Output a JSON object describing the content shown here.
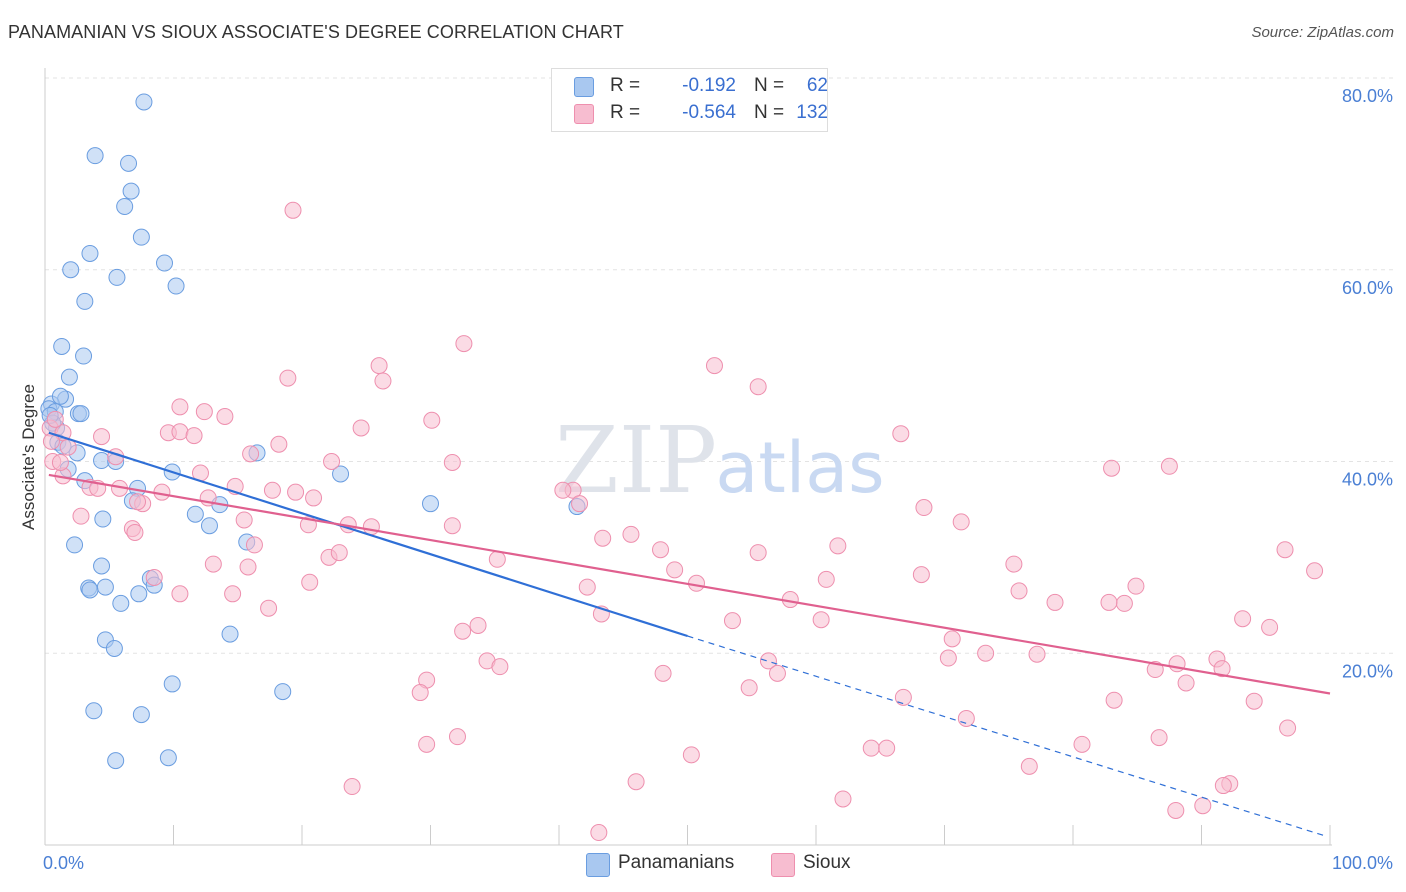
{
  "title": "PANAMANIAN VS SIOUX ASSOCIATE'S DEGREE CORRELATION CHART",
  "source": "Source: ZipAtlas.com",
  "watermark": {
    "zip": "ZIP",
    "atlas": "atlas"
  },
  "legend": {
    "rows": [
      {
        "r_label": "R =",
        "r_value": "-0.192",
        "n_label": "N =",
        "n_value": "62",
        "color": "#a9c8f0",
        "stroke": "#6a9de0"
      },
      {
        "r_label": "R =",
        "r_value": "-0.564",
        "n_label": "N =",
        "n_value": "132",
        "color": "#f7bdd0",
        "stroke": "#ee8fae"
      }
    ]
  },
  "bottom_legend": [
    "Panamanians",
    "Sioux"
  ],
  "chart_data": {
    "type": "scatter",
    "title": "PANAMANIAN VS SIOUX ASSOCIATE'S DEGREE CORRELATION CHART",
    "xlabel": "",
    "ylabel": "Associate's Degree",
    "xlim": [
      0,
      100
    ],
    "ylim": [
      0,
      80
    ],
    "x_tick_labels": [
      "0.0%",
      "100.0%"
    ],
    "y_tick_labels": [
      "20.0%",
      "40.0%",
      "60.0%",
      "80.0%"
    ],
    "y_ticks": [
      20,
      40,
      60,
      80
    ],
    "series": [
      {
        "name": "Panamanians",
        "color": "#a9c8f0",
        "stroke": "#6a9de0",
        "line_color": "#2f6fd6",
        "trend": {
          "x0": 0.3,
          "y0": 43.0,
          "x1": 50,
          "y1": 21.8,
          "dash_x1": 99.5,
          "dash_y1": 1.0
        },
        "points": [
          [
            7.7,
            77.5
          ],
          [
            3.9,
            71.9
          ],
          [
            6.5,
            71.1
          ],
          [
            6.7,
            68.2
          ],
          [
            6.2,
            66.6
          ],
          [
            7.5,
            63.4
          ],
          [
            3.5,
            61.7
          ],
          [
            2.0,
            60.0
          ],
          [
            9.3,
            60.7
          ],
          [
            5.6,
            59.2
          ],
          [
            10.2,
            58.3
          ],
          [
            3.1,
            56.7
          ],
          [
            1.3,
            52.0
          ],
          [
            3.0,
            51.0
          ],
          [
            1.9,
            48.8
          ],
          [
            1.6,
            46.5
          ],
          [
            0.5,
            46.0
          ],
          [
            0.3,
            45.5
          ],
          [
            0.8,
            45.2
          ],
          [
            2.6,
            45.0
          ],
          [
            2.8,
            45.0
          ],
          [
            0.9,
            43.5
          ],
          [
            1.0,
            42.0
          ],
          [
            2.5,
            40.9
          ],
          [
            1.8,
            39.2
          ],
          [
            4.4,
            40.1
          ],
          [
            5.5,
            40.0
          ],
          [
            9.9,
            38.9
          ],
          [
            16.5,
            40.9
          ],
          [
            23.0,
            38.7
          ],
          [
            3.1,
            38.0
          ],
          [
            7.2,
            37.2
          ],
          [
            6.8,
            35.9
          ],
          [
            11.7,
            34.5
          ],
          [
            12.8,
            33.3
          ],
          [
            13.6,
            35.5
          ],
          [
            4.5,
            34.0
          ],
          [
            30.0,
            35.6
          ],
          [
            41.4,
            35.3
          ],
          [
            2.3,
            31.3
          ],
          [
            15.7,
            31.6
          ],
          [
            4.4,
            29.1
          ],
          [
            8.2,
            27.8
          ],
          [
            3.4,
            26.8
          ],
          [
            3.5,
            26.6
          ],
          [
            4.7,
            26.9
          ],
          [
            8.5,
            27.1
          ],
          [
            7.3,
            26.2
          ],
          [
            5.9,
            25.2
          ],
          [
            14.4,
            22.0
          ],
          [
            4.7,
            21.4
          ],
          [
            5.4,
            20.5
          ],
          [
            9.9,
            16.8
          ],
          [
            18.5,
            16.0
          ],
          [
            3.8,
            14.0
          ],
          [
            7.5,
            13.6
          ],
          [
            5.5,
            8.8
          ],
          [
            9.6,
            9.1
          ],
          [
            1.2,
            46.8
          ],
          [
            0.6,
            44.0
          ],
          [
            0.4,
            44.8
          ],
          [
            1.4,
            41.6
          ]
        ]
      },
      {
        "name": "Sioux",
        "color": "#f7bdd0",
        "stroke": "#ee8fae",
        "line_color": "#e0608f",
        "trend": {
          "x0": 0.3,
          "y0": 38.6,
          "x1": 100,
          "y1": 15.8
        },
        "points": [
          [
            19.3,
            66.2
          ],
          [
            32.6,
            52.3
          ],
          [
            26.0,
            50.0
          ],
          [
            52.1,
            50.0
          ],
          [
            18.9,
            48.7
          ],
          [
            26.3,
            48.4
          ],
          [
            55.5,
            47.8
          ],
          [
            10.5,
            45.7
          ],
          [
            12.4,
            45.2
          ],
          [
            14.0,
            44.7
          ],
          [
            30.1,
            44.3
          ],
          [
            24.6,
            43.5
          ],
          [
            0.4,
            43.5
          ],
          [
            1.4,
            43.0
          ],
          [
            9.6,
            43.0
          ],
          [
            10.5,
            43.1
          ],
          [
            11.6,
            42.7
          ],
          [
            4.4,
            42.6
          ],
          [
            66.6,
            42.9
          ],
          [
            18.2,
            41.8
          ],
          [
            16.0,
            40.8
          ],
          [
            5.5,
            40.5
          ],
          [
            0.6,
            40.0
          ],
          [
            22.3,
            40.0
          ],
          [
            31.7,
            39.9
          ],
          [
            83.0,
            39.3
          ],
          [
            87.5,
            39.5
          ],
          [
            12.1,
            38.8
          ],
          [
            1.4,
            38.5
          ],
          [
            3.5,
            37.3
          ],
          [
            4.1,
            37.2
          ],
          [
            5.8,
            37.2
          ],
          [
            14.8,
            37.4
          ],
          [
            17.7,
            37.0
          ],
          [
            9.1,
            36.8
          ],
          [
            19.5,
            36.8
          ],
          [
            20.9,
            36.2
          ],
          [
            12.7,
            36.2
          ],
          [
            7.6,
            35.6
          ],
          [
            7.2,
            35.8
          ],
          [
            41.1,
            37.0
          ],
          [
            40.3,
            37.0
          ],
          [
            41.6,
            35.6
          ],
          [
            68.4,
            35.2
          ],
          [
            71.3,
            33.7
          ],
          [
            2.8,
            34.3
          ],
          [
            15.5,
            33.9
          ],
          [
            25.4,
            33.2
          ],
          [
            31.7,
            33.3
          ],
          [
            23.6,
            33.4
          ],
          [
            20.5,
            33.4
          ],
          [
            6.8,
            33.0
          ],
          [
            7.0,
            32.6
          ],
          [
            45.6,
            32.4
          ],
          [
            43.4,
            32.0
          ],
          [
            16.3,
            31.3
          ],
          [
            61.7,
            31.2
          ],
          [
            47.9,
            30.8
          ],
          [
            55.5,
            30.5
          ],
          [
            96.5,
            30.8
          ],
          [
            22.1,
            30.0
          ],
          [
            22.9,
            30.5
          ],
          [
            13.1,
            29.3
          ],
          [
            15.8,
            29.0
          ],
          [
            35.2,
            29.8
          ],
          [
            75.4,
            29.3
          ],
          [
            49.0,
            28.7
          ],
          [
            68.2,
            28.2
          ],
          [
            98.8,
            28.6
          ],
          [
            8.5,
            27.9
          ],
          [
            20.6,
            27.4
          ],
          [
            50.7,
            27.3
          ],
          [
            60.8,
            27.7
          ],
          [
            42.2,
            26.9
          ],
          [
            10.5,
            26.2
          ],
          [
            14.6,
            26.2
          ],
          [
            84.9,
            27.0
          ],
          [
            75.8,
            26.5
          ],
          [
            58.0,
            25.6
          ],
          [
            78.6,
            25.3
          ],
          [
            84.0,
            25.2
          ],
          [
            82.8,
            25.3
          ],
          [
            17.4,
            24.7
          ],
          [
            43.3,
            24.1
          ],
          [
            60.4,
            23.5
          ],
          [
            53.5,
            23.4
          ],
          [
            93.2,
            23.6
          ],
          [
            95.3,
            22.7
          ],
          [
            33.7,
            22.9
          ],
          [
            32.5,
            22.3
          ],
          [
            70.6,
            21.5
          ],
          [
            73.2,
            20.0
          ],
          [
            77.2,
            19.9
          ],
          [
            70.3,
            19.5
          ],
          [
            91.2,
            19.4
          ],
          [
            56.3,
            19.2
          ],
          [
            34.4,
            19.2
          ],
          [
            88.1,
            18.9
          ],
          [
            35.4,
            18.6
          ],
          [
            91.6,
            18.4
          ],
          [
            86.4,
            18.3
          ],
          [
            48.1,
            17.9
          ],
          [
            57.0,
            17.9
          ],
          [
            29.7,
            17.2
          ],
          [
            88.8,
            16.9
          ],
          [
            29.2,
            15.9
          ],
          [
            54.8,
            16.4
          ],
          [
            66.8,
            15.4
          ],
          [
            83.2,
            15.1
          ],
          [
            94.1,
            15.0
          ],
          [
            71.7,
            13.2
          ],
          [
            96.7,
            12.2
          ],
          [
            32.1,
            11.3
          ],
          [
            86.7,
            11.2
          ],
          [
            29.7,
            10.5
          ],
          [
            80.7,
            10.5
          ],
          [
            64.3,
            10.1
          ],
          [
            65.5,
            10.1
          ],
          [
            50.3,
            9.4
          ],
          [
            76.6,
            8.2
          ],
          [
            92.2,
            6.4
          ],
          [
            91.7,
            6.2
          ],
          [
            46.0,
            6.6
          ],
          [
            23.9,
            6.1
          ],
          [
            62.1,
            4.8
          ],
          [
            88.0,
            3.6
          ],
          [
            90.1,
            4.1
          ],
          [
            43.1,
            1.3
          ],
          [
            0.8,
            44.4
          ],
          [
            0.5,
            42.1
          ],
          [
            1.2,
            39.9
          ],
          [
            1.8,
            41.5
          ]
        ]
      }
    ]
  }
}
